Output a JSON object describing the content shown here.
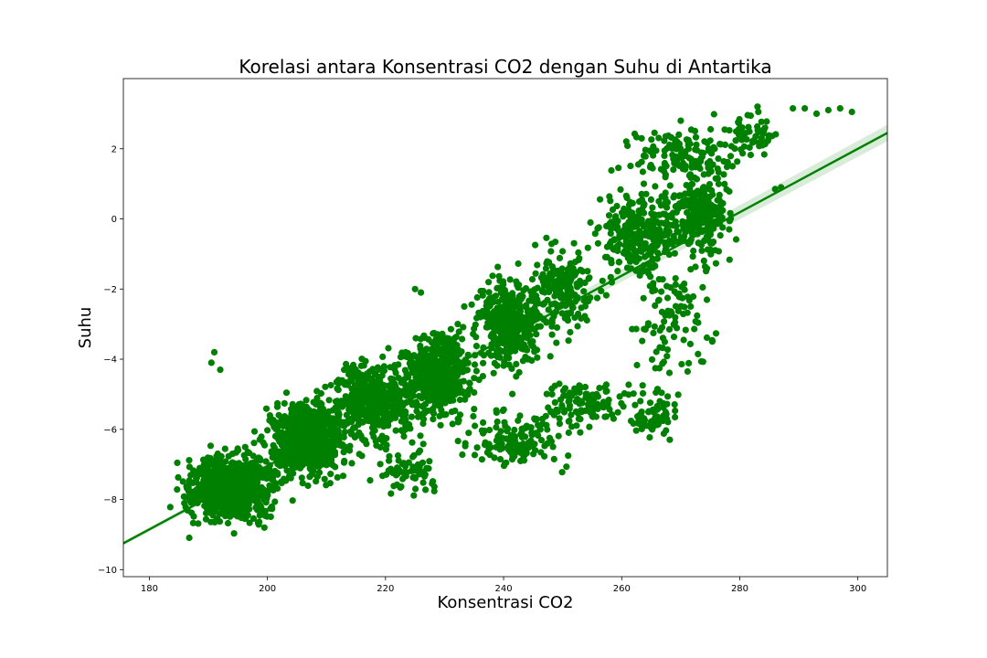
{
  "chart_data": {
    "type": "scatter",
    "title": "Korelasi antara Konsentrasi CO2 dengan Suhu di Antartika",
    "xlabel": "Konsentrasi CO2",
    "ylabel": "Suhu",
    "xlim": [
      175.6,
      305.0
    ],
    "ylim": [
      -10.2,
      4.0
    ],
    "xticks": [
      180,
      200,
      220,
      240,
      260,
      280,
      300
    ],
    "yticks": [
      -10,
      -8,
      -6,
      -4,
      -2,
      0,
      2
    ],
    "grid": false,
    "legend": "none",
    "color": "#008000",
    "regression_line": {
      "x": [
        175.6,
        305.0
      ],
      "y": [
        -9.25,
        2.45
      ]
    },
    "series": [
      {
        "clusters": [
          {
            "cx": 194,
            "cy": -7.7,
            "sx": 5.5,
            "sy": 0.65,
            "n": 900
          },
          {
            "cx": 207,
            "cy": -6.3,
            "sx": 5.0,
            "sy": 0.8,
            "n": 650
          },
          {
            "cx": 218,
            "cy": -5.2,
            "sx": 5.0,
            "sy": 0.8,
            "n": 450
          },
          {
            "cx": 229,
            "cy": -4.4,
            "sx": 4.5,
            "sy": 0.9,
            "n": 500
          },
          {
            "cx": 241,
            "cy": -3.0,
            "sx": 4.5,
            "sy": 0.9,
            "n": 380
          },
          {
            "cx": 250,
            "cy": -2.0,
            "sx": 4.0,
            "sy": 0.9,
            "n": 180
          },
          {
            "cx": 263,
            "cy": -0.4,
            "sx": 4.5,
            "sy": 0.9,
            "n": 300
          },
          {
            "cx": 273,
            "cy": 0.1,
            "sx": 4.0,
            "sy": 0.9,
            "n": 260
          },
          {
            "cx": 270,
            "cy": 1.8,
            "sx": 7.0,
            "sy": 0.5,
            "n": 130
          },
          {
            "cx": 282,
            "cy": 2.4,
            "sx": 4.0,
            "sy": 0.5,
            "n": 60
          },
          {
            "cx": 242,
            "cy": -6.3,
            "sx": 6.0,
            "sy": 0.6,
            "n": 150
          },
          {
            "cx": 254,
            "cy": -5.3,
            "sx": 5.0,
            "sy": 0.5,
            "n": 110
          },
          {
            "cx": 265,
            "cy": -5.6,
            "sx": 3.5,
            "sy": 0.6,
            "n": 70
          },
          {
            "cx": 268,
            "cy": -3.0,
            "sx": 5.0,
            "sy": 1.0,
            "n": 90
          },
          {
            "cx": 224,
            "cy": -7.2,
            "sx": 4.0,
            "sy": 0.5,
            "n": 70
          }
        ]
      },
      {
        "x": [
          191,
          192,
          190.5,
          283,
          289,
          291,
          293,
          295,
          297,
          299,
          287,
          286,
          270,
          225,
          226
        ],
        "y": [
          -3.8,
          -4.3,
          -4.1,
          3.2,
          3.15,
          3.15,
          3.0,
          3.1,
          3.15,
          3.05,
          0.9,
          0.85,
          2.8,
          -2.0,
          -2.1
        ]
      }
    ]
  }
}
